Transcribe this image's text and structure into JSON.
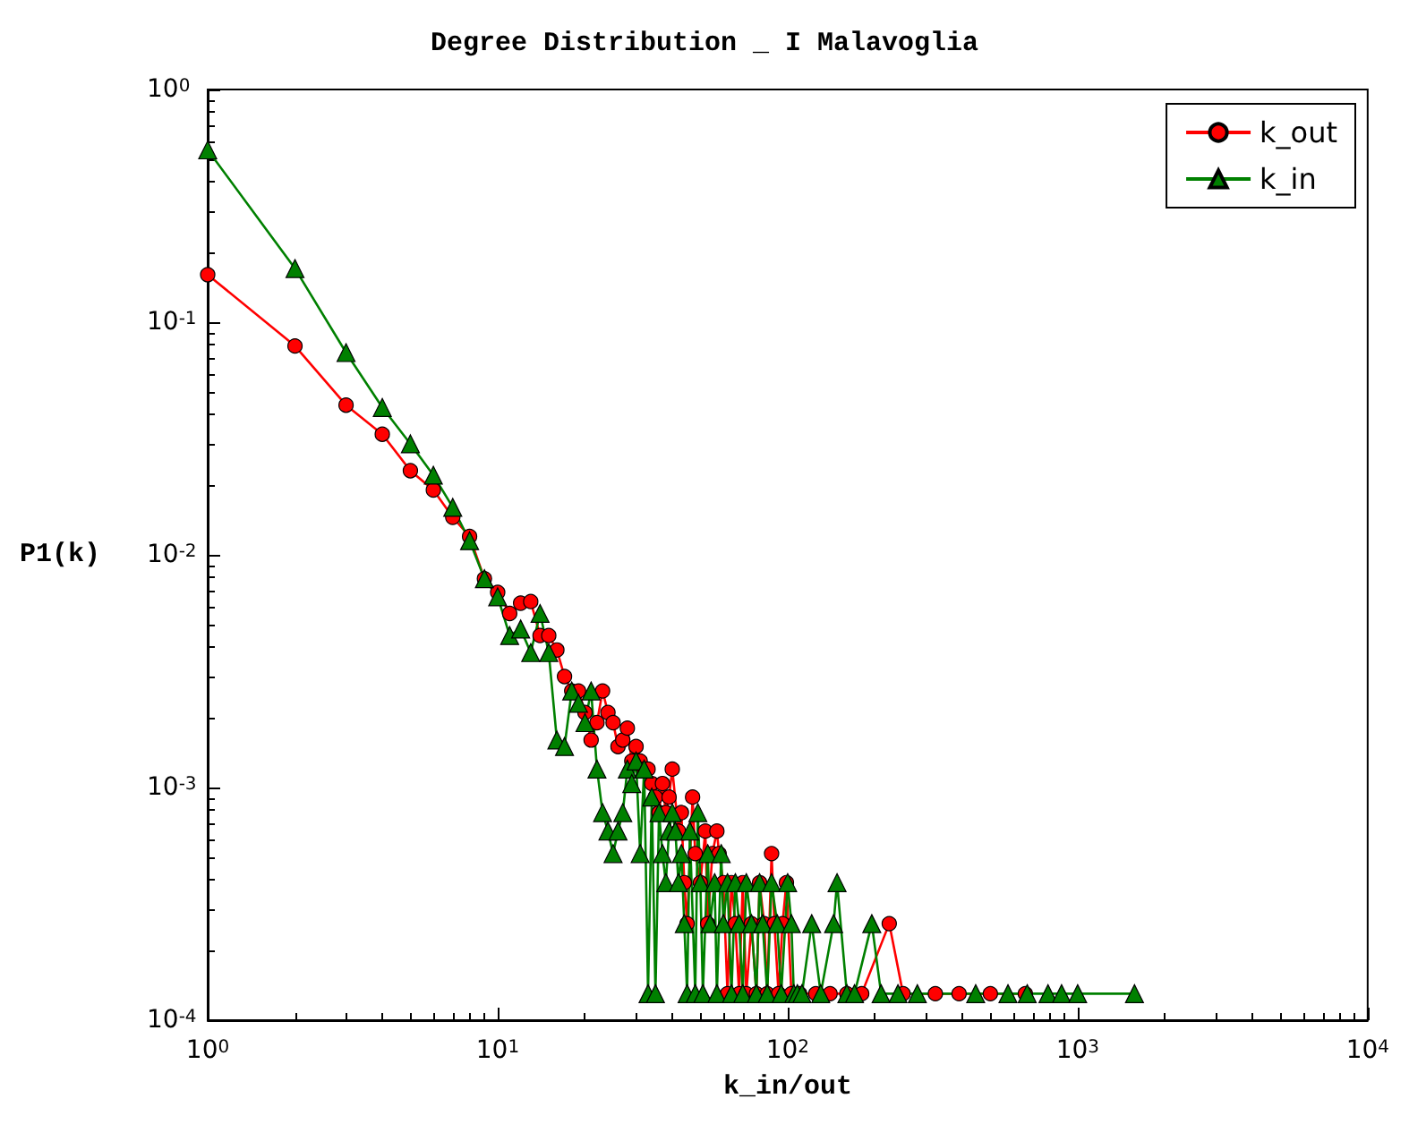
{
  "chart_data": {
    "type": "line",
    "title": "Degree Distribution _ I Malavoglia",
    "xlabel": "k_in/out",
    "ylabel": "P1(k)",
    "log": "xy",
    "grid": false,
    "legend": "top right",
    "xlim": [
      1,
      10000
    ],
    "ylim": [
      0.0001,
      1
    ],
    "xticks": [
      {
        "value": 1,
        "label": "10$^{0}$"
      },
      {
        "value": 10,
        "label": "10$^{1}$"
      },
      {
        "value": 100,
        "label": "10$^{2}$"
      },
      {
        "value": 1000,
        "label": "10$^{3}$"
      },
      {
        "value": 10000,
        "label": "10$^{4}$"
      }
    ],
    "yticks": [
      {
        "value": 0.0001,
        "label": "10$^{-4}$"
      },
      {
        "value": 0.001,
        "label": "10$^{-3}$"
      },
      {
        "value": 0.01,
        "label": "10$^{-2}$"
      },
      {
        "value": 0.1,
        "label": "10$^{-1}$"
      },
      {
        "value": 1,
        "label": "10$^{0}$"
      }
    ],
    "series": [
      {
        "name": "k_out",
        "color": "#ff0000",
        "marker": "circle",
        "x": [
          1,
          2,
          3,
          4,
          5,
          6,
          7,
          8,
          9,
          10,
          11,
          12,
          13,
          14,
          15,
          16,
          17,
          18,
          19,
          20,
          21,
          22,
          23,
          24,
          25,
          26,
          27,
          28,
          29,
          30,
          31,
          32,
          33,
          34,
          35,
          36,
          37,
          38,
          39,
          40,
          42,
          43,
          44,
          45,
          47,
          48,
          50,
          52,
          53,
          55,
          57,
          58,
          60,
          62,
          64,
          66,
          68,
          70,
          72,
          75,
          78,
          80,
          83,
          85,
          88,
          90,
          93,
          96,
          99,
          103,
          110,
          125,
          140,
          160,
          180,
          224,
          250,
          323,
          390,
          500,
          660
        ],
        "values": [
          0.16,
          0.079,
          0.044,
          0.033,
          0.023,
          0.019,
          0.0145,
          0.012,
          0.0079,
          0.0069,
          0.0056,
          0.0062,
          0.0063,
          0.0045,
          0.0045,
          0.0039,
          0.003,
          0.0026,
          0.0026,
          0.0021,
          0.0016,
          0.0019,
          0.0026,
          0.0021,
          0.0019,
          0.0015,
          0.0016,
          0.0018,
          0.0013,
          0.0015,
          0.0013,
          0.0012,
          0.0012,
          0.00104,
          0.00091,
          0.00078,
          0.00104,
          0.00078,
          0.00091,
          0.0012,
          0.00065,
          0.00078,
          0.00039,
          0.00026,
          0.00091,
          0.00052,
          0.00039,
          0.00065,
          0.00026,
          0.00052,
          0.00065,
          0.00052,
          0.00039,
          0.00013,
          0.00039,
          0.00026,
          0.00013,
          0.00039,
          0.00013,
          0.00026,
          0.00013,
          0.00039,
          0.00026,
          0.00013,
          0.00052,
          0.00026,
          0.00013,
          0.00026,
          0.00039,
          0.00013,
          0.00013,
          0.00013,
          0.00013,
          0.00013,
          0.00013,
          0.00026,
          0.00013,
          0.00013,
          0.00013,
          0.00013,
          0.00013
        ]
      },
      {
        "name": "k_in",
        "color": "#008000",
        "marker": "triangle",
        "x": [
          1,
          2,
          3,
          4,
          5,
          6,
          7,
          8,
          9,
          10,
          11,
          12,
          13,
          14,
          15,
          16,
          17,
          18,
          19,
          20,
          21,
          22,
          23,
          24,
          25,
          26,
          27,
          28,
          29,
          30,
          31,
          32,
          33,
          34,
          35,
          36,
          37,
          38,
          39,
          40,
          41,
          42,
          43,
          44,
          45,
          46,
          48,
          49,
          50,
          51,
          53,
          54,
          56,
          57,
          59,
          60,
          62,
          64,
          66,
          68,
          70,
          72,
          75,
          78,
          80,
          82,
          85,
          88,
          92,
          95,
          100,
          103,
          105,
          108,
          112,
          121,
          130,
          144,
          148,
          160,
          170,
          195,
          210,
          240,
          280,
          445,
          575,
          670,
          790,
          880,
          1000,
          1570
        ],
        "values": [
          0.55,
          0.17,
          0.074,
          0.043,
          0.03,
          0.022,
          0.016,
          0.0115,
          0.0079,
          0.0066,
          0.0045,
          0.0048,
          0.0038,
          0.0056,
          0.0038,
          0.0016,
          0.0015,
          0.0026,
          0.0023,
          0.0019,
          0.0026,
          0.0012,
          0.00078,
          0.00065,
          0.00052,
          0.00065,
          0.00078,
          0.0012,
          0.00104,
          0.0013,
          0.00052,
          0.0012,
          0.00013,
          0.00091,
          0.00013,
          0.00078,
          0.00052,
          0.00039,
          0.00065,
          0.00078,
          0.00065,
          0.00039,
          0.00052,
          0.00026,
          0.00013,
          0.00065,
          0.00013,
          0.00078,
          0.00039,
          0.00013,
          0.00052,
          0.00026,
          0.00039,
          0.00013,
          0.00052,
          0.00026,
          0.00039,
          0.00013,
          0.00039,
          0.00026,
          0.00013,
          0.00039,
          0.00026,
          0.00013,
          0.00039,
          0.00026,
          0.00013,
          0.00039,
          0.00026,
          0.00013,
          0.00039,
          0.00026,
          0.00013,
          0.00013,
          0.00013,
          0.00026,
          0.00013,
          0.00026,
          0.00039,
          0.00013,
          0.00013,
          0.00026,
          0.00013,
          0.00013,
          0.00013,
          0.00013,
          0.00013,
          0.00013,
          0.00013,
          0.00013,
          0.00013,
          0.00013
        ]
      }
    ]
  }
}
